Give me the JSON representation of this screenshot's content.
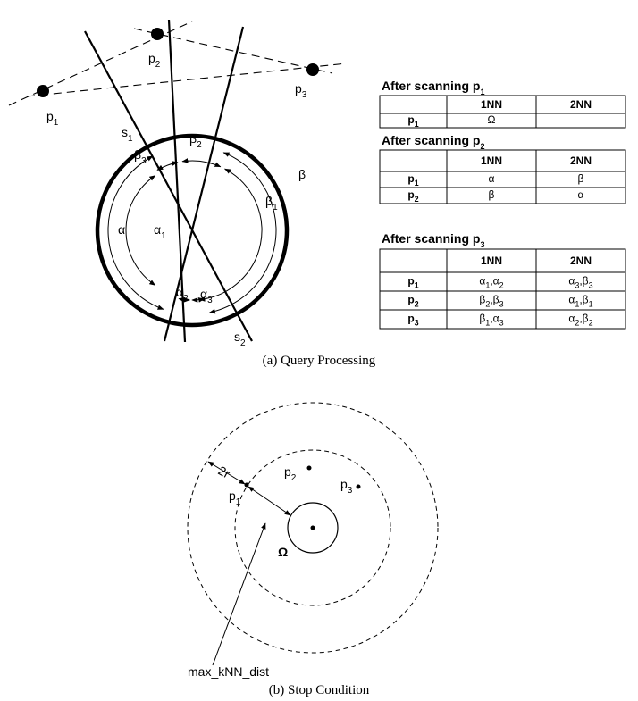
{
  "figure_a": {
    "caption": "(a) Query Processing",
    "point_labels": [
      [
        {
          "text": "p"
        },
        {
          "text": "1",
          "sub": true
        }
      ],
      [
        {
          "text": "p"
        },
        {
          "text": "2",
          "sub": true
        }
      ],
      [
        {
          "text": "p"
        },
        {
          "text": "3",
          "sub": true
        }
      ]
    ],
    "line_labels": [
      [
        {
          "text": "s"
        },
        {
          "text": "1",
          "sub": true
        }
      ],
      [
        {
          "text": "s"
        },
        {
          "text": "2",
          "sub": true
        }
      ]
    ],
    "angle_labels": [
      [
        {
          "text": "β"
        }
      ],
      [
        {
          "text": "β"
        },
        {
          "text": "1",
          "sub": true
        }
      ],
      [
        {
          "text": "β"
        },
        {
          "text": "2",
          "sub": true
        }
      ],
      [
        {
          "text": "β"
        },
        {
          "text": "3",
          "sub": true
        }
      ],
      [
        {
          "text": "α"
        }
      ],
      [
        {
          "text": "α"
        },
        {
          "text": "1",
          "sub": true
        }
      ],
      [
        {
          "text": "α"
        },
        {
          "text": "2",
          "sub": true
        }
      ],
      [
        {
          "text": "α"
        },
        {
          "text": "3",
          "sub": true
        }
      ]
    ],
    "tables": [
      {
        "title": [
          {
            "text": "After scanning p"
          },
          {
            "text": "1",
            "sub": true
          }
        ],
        "header": [
          "1NN",
          "2NN"
        ],
        "rows": [
          {
            "label": [
              {
                "text": "p"
              },
              {
                "text": "1",
                "sub": true
              }
            ],
            "cells": [
              [
                {
                  "text": "Ω"
                }
              ],
              []
            ]
          }
        ]
      },
      {
        "title": [
          {
            "text": "After scanning p"
          },
          {
            "text": "2",
            "sub": true
          }
        ],
        "header": [
          "1NN",
          "2NN"
        ],
        "rows": [
          {
            "label": [
              {
                "text": "p"
              },
              {
                "text": "1",
                "sub": true
              }
            ],
            "cells": [
              [
                {
                  "text": "α"
                }
              ],
              [
                {
                  "text": "β"
                }
              ]
            ]
          },
          {
            "label": [
              {
                "text": "p"
              },
              {
                "text": "2",
                "sub": true
              }
            ],
            "cells": [
              [
                {
                  "text": "β"
                }
              ],
              [
                {
                  "text": "α"
                }
              ]
            ]
          }
        ]
      },
      {
        "title": [
          {
            "text": "After scanning p"
          },
          {
            "text": "3",
            "sub": true
          }
        ],
        "header": [
          "1NN",
          "2NN"
        ],
        "rows": [
          {
            "label": [
              {
                "text": "p"
              },
              {
                "text": "1",
                "sub": true
              }
            ],
            "cells": [
              [
                {
                  "text": "α"
                },
                {
                  "text": "1",
                  "sub": true
                },
                {
                  "text": ",α"
                },
                {
                  "text": "2",
                  "sub": true
                }
              ],
              [
                {
                  "text": "α"
                },
                {
                  "text": "3",
                  "sub": true
                },
                {
                  "text": ",β"
                },
                {
                  "text": "3",
                  "sub": true
                }
              ]
            ]
          },
          {
            "label": [
              {
                "text": "p"
              },
              {
                "text": "2",
                "sub": true
              }
            ],
            "cells": [
              [
                {
                  "text": "β"
                },
                {
                  "text": "2",
                  "sub": true
                },
                {
                  "text": ",β"
                },
                {
                  "text": "3",
                  "sub": true
                }
              ],
              [
                {
                  "text": "α"
                },
                {
                  "text": "1",
                  "sub": true
                },
                {
                  "text": ",β"
                },
                {
                  "text": "1",
                  "sub": true
                }
              ]
            ]
          },
          {
            "label": [
              {
                "text": "p"
              },
              {
                "text": "3",
                "sub": true
              }
            ],
            "cells": [
              [
                {
                  "text": "β"
                },
                {
                  "text": "1",
                  "sub": true
                },
                {
                  "text": ",α"
                },
                {
                  "text": "3",
                  "sub": true
                }
              ],
              [
                {
                  "text": "α"
                },
                {
                  "text": "2",
                  "sub": true
                },
                {
                  "text": ",β"
                },
                {
                  "text": "2",
                  "sub": true
                }
              ]
            ]
          }
        ]
      }
    ]
  },
  "figure_b": {
    "caption": "(b) Stop Condition",
    "point_labels": [
      [
        {
          "text": "p"
        },
        {
          "text": "1",
          "sub": true
        }
      ],
      [
        {
          "text": "p"
        },
        {
          "text": "2",
          "sub": true
        }
      ],
      [
        {
          "text": "p"
        },
        {
          "text": "3",
          "sub": true
        }
      ]
    ],
    "distance_label": "2r",
    "query_label": "Ω",
    "pointer_label": "max_kNN_dist"
  }
}
